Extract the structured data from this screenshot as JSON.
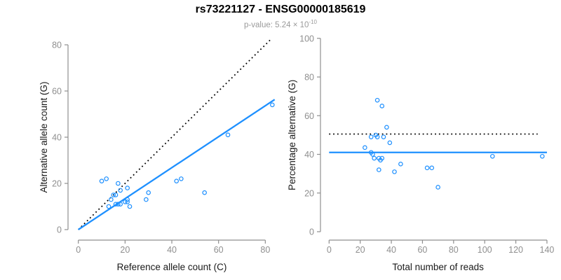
{
  "figure": {
    "title": "rs73221127 - ENSG00000185619",
    "subtitle": {
      "base": "p-value: 5.24 × 10",
      "exponent": "-10"
    },
    "colors": {
      "accent_blue": "#1E90FF",
      "dotted_black": "#000000",
      "axis_gray": "#8f8f8f",
      "tick_label_gray": "#8f8f8f",
      "axis_title_black": "#1a1a1a",
      "subtitle_gray": "#9a9a9a",
      "background": "#ffffff"
    }
  },
  "chart_data": [
    {
      "type": "scatter",
      "title": "",
      "xlabel": "Reference allele count (C)",
      "ylabel": "Alternative allele count (G)",
      "xlim": [
        0,
        84
      ],
      "ylim": [
        0,
        82.5
      ],
      "xticks": [
        0,
        20,
        40,
        60,
        80
      ],
      "yticks": [
        0,
        20,
        40,
        60,
        80
      ],
      "grid": false,
      "legend": "none",
      "points": [
        [
          10,
          21
        ],
        [
          12,
          22
        ],
        [
          13,
          10
        ],
        [
          14,
          13
        ],
        [
          15,
          15
        ],
        [
          16,
          11
        ],
        [
          16,
          15
        ],
        [
          17,
          11
        ],
        [
          17,
          20
        ],
        [
          18,
          11
        ],
        [
          18,
          17
        ],
        [
          20,
          12
        ],
        [
          21,
          12
        ],
        [
          21,
          13
        ],
        [
          21,
          18
        ],
        [
          22,
          10
        ],
        [
          29,
          13
        ],
        [
          30,
          16
        ],
        [
          42,
          21
        ],
        [
          44,
          22
        ],
        [
          54,
          16
        ],
        [
          64,
          41
        ],
        [
          83,
          54
        ]
      ],
      "lines": [
        {
          "label": "identity",
          "style": "dotted",
          "color": "#000000",
          "x": [
            0,
            82.3
          ],
          "y": [
            0,
            82.3
          ]
        },
        {
          "label": "fit",
          "style": "solid",
          "color": "#1E90FF",
          "x": [
            0,
            84
          ],
          "y": [
            0,
            56.3
          ]
        }
      ]
    },
    {
      "type": "scatter",
      "title": "",
      "xlabel": "Total number of reads",
      "ylabel": "Percentage alternative (G)",
      "xlim": [
        0,
        140.5
      ],
      "ylim": [
        0,
        100
      ],
      "xticks": [
        0,
        20,
        40,
        60,
        80,
        100,
        120,
        140
      ],
      "yticks": [
        0,
        20,
        40,
        60,
        80,
        100
      ],
      "grid": false,
      "legend": "none",
      "points": [
        [
          23,
          43.5
        ],
        [
          27,
          41
        ],
        [
          27,
          49
        ],
        [
          28,
          40
        ],
        [
          29,
          38
        ],
        [
          30,
          50
        ],
        [
          31,
          49
        ],
        [
          31,
          68
        ],
        [
          32,
          32
        ],
        [
          32,
          38
        ],
        [
          33,
          37
        ],
        [
          34,
          38
        ],
        [
          34,
          65
        ],
        [
          35,
          49
        ],
        [
          37,
          54
        ],
        [
          39,
          46
        ],
        [
          42,
          31
        ],
        [
          46,
          35
        ],
        [
          63,
          33
        ],
        [
          66,
          33
        ],
        [
          70,
          23
        ],
        [
          105,
          39
        ],
        [
          137,
          39
        ]
      ],
      "lines": [
        {
          "label": "fifty-percent",
          "style": "dotted",
          "color": "#000000",
          "x": [
            0,
            134
          ],
          "y": [
            50.5,
            50.5
          ]
        },
        {
          "label": "mean",
          "style": "solid",
          "color": "#1E90FF",
          "x": [
            0,
            140
          ],
          "y": [
            41,
            41
          ]
        }
      ]
    }
  ]
}
